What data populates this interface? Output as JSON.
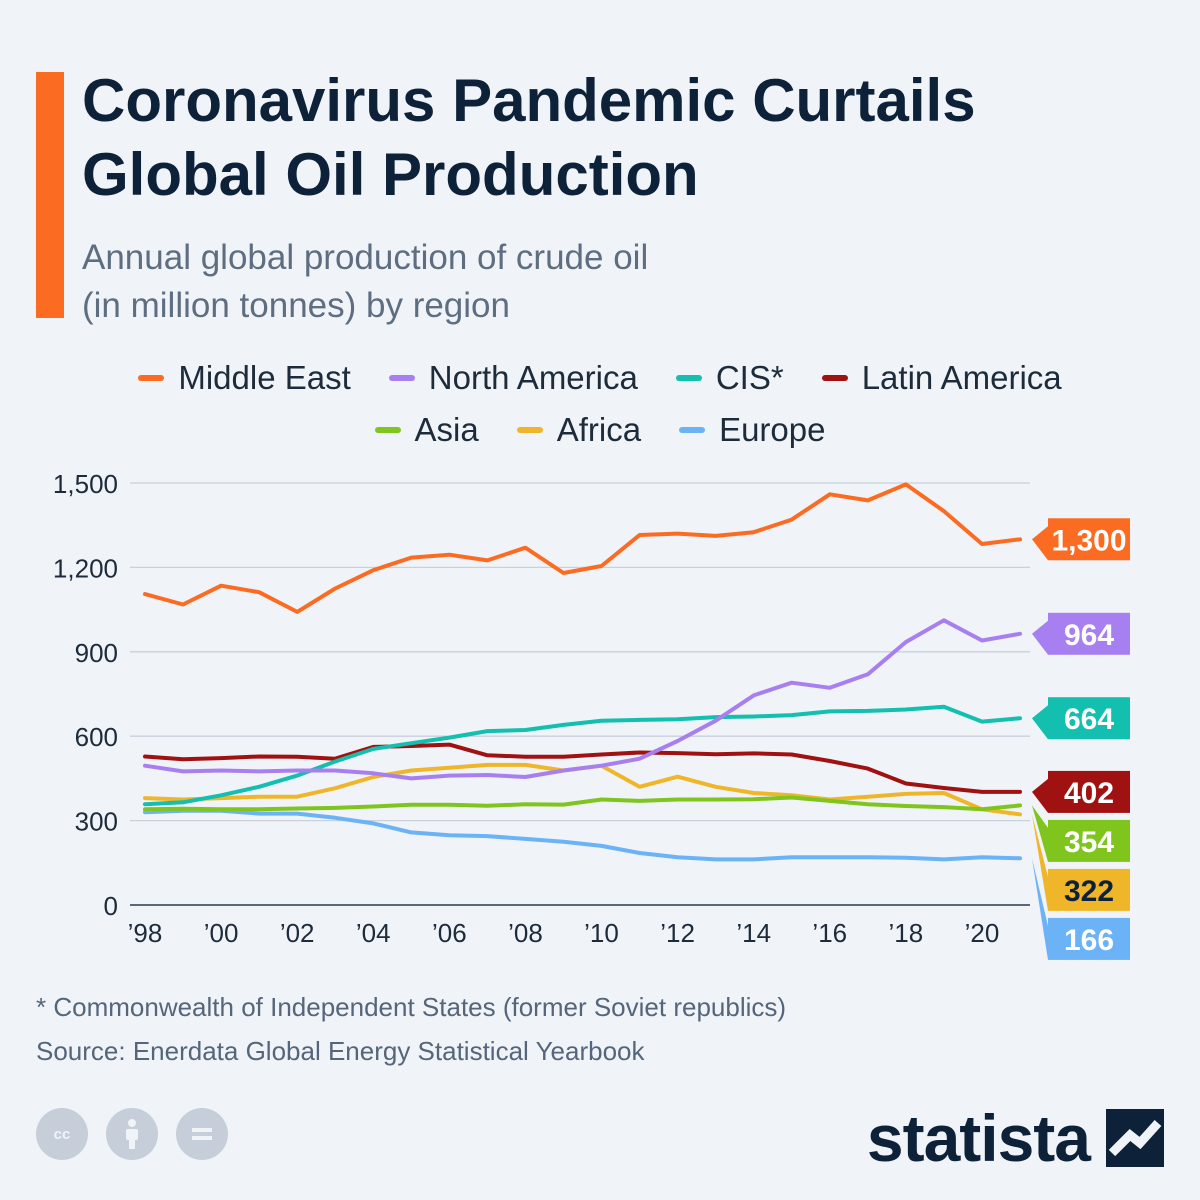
{
  "title": "Coronavirus Pandemic Curtails\nGlobal Oil Production",
  "subtitle": "Annual global production of crude oil\n(in million tonnes) by region",
  "footnote": "* Commonwealth of Independent States (former Soviet republics)",
  "source": "Source: Enerdata Global Energy Statistical Yearbook",
  "brand": "statista",
  "accent_color": "#fb6b22",
  "license_icons": [
    "cc-icon",
    "attribution-icon",
    "no-derivatives-icon"
  ],
  "chart_data": {
    "type": "line",
    "title": "Annual global production of crude oil (in million tonnes) by region",
    "xlabel": "",
    "ylabel": "",
    "x": [
      1998,
      1999,
      2000,
      2001,
      2002,
      2003,
      2004,
      2005,
      2006,
      2007,
      2008,
      2009,
      2010,
      2011,
      2012,
      2013,
      2014,
      2015,
      2016,
      2017,
      2018,
      2019,
      2020,
      2021
    ],
    "xticks": [
      1998,
      2000,
      2002,
      2004,
      2006,
      2008,
      2010,
      2012,
      2014,
      2016,
      2018,
      2020
    ],
    "xtick_labels": [
      "’98",
      "’00",
      "’02",
      "’04",
      "’06",
      "’08",
      "’10",
      "’12",
      "’14",
      "’16",
      "’18",
      "’20"
    ],
    "yticks": [
      0,
      300,
      600,
      900,
      1200,
      1500
    ],
    "ytick_labels": [
      "0",
      "300",
      "600",
      "900",
      "1,200",
      "1,500"
    ],
    "ylim": [
      0,
      1500
    ],
    "grid": true,
    "legend_rows": [
      [
        "Middle East",
        "North America",
        "CIS*",
        "Latin America"
      ],
      [
        "Asia",
        "Africa",
        "Europe"
      ]
    ],
    "series": [
      {
        "name": "Middle East",
        "color": "#fb6b22",
        "end_label": "1,300",
        "label_text_color": "#ffffff",
        "values": [
          1105,
          1068,
          1135,
          1112,
          1042,
          1125,
          1190,
          1235,
          1245,
          1225,
          1270,
          1180,
          1205,
          1315,
          1320,
          1312,
          1325,
          1370,
          1460,
          1438,
          1495,
          1400,
          1283,
          1300
        ]
      },
      {
        "name": "North America",
        "color": "#a87ff0",
        "end_label": "964",
        "label_text_color": "#ffffff",
        "values": [
          495,
          475,
          478,
          475,
          478,
          478,
          468,
          450,
          460,
          462,
          455,
          478,
          495,
          520,
          583,
          655,
          745,
          790,
          772,
          820,
          935,
          1012,
          940,
          964
        ]
      },
      {
        "name": "CIS*",
        "color": "#13bfae",
        "end_label": "664",
        "label_text_color": "#ffffff",
        "values": [
          358,
          365,
          390,
          420,
          460,
          510,
          555,
          575,
          595,
          618,
          622,
          640,
          655,
          658,
          660,
          668,
          670,
          675,
          688,
          690,
          695,
          705,
          652,
          664
        ]
      },
      {
        "name": "Latin America",
        "color": "#a01212",
        "end_label": "402",
        "label_text_color": "#ffffff",
        "values": [
          528,
          518,
          522,
          528,
          527,
          520,
          562,
          565,
          570,
          532,
          527,
          527,
          535,
          542,
          540,
          536,
          539,
          535,
          512,
          485,
          432,
          416,
          402,
          402
        ]
      },
      {
        "name": "Asia",
        "color": "#7fc51e",
        "end_label": "354",
        "label_text_color": "#ffffff",
        "values": [
          340,
          342,
          340,
          340,
          343,
          345,
          350,
          356,
          356,
          353,
          358,
          357,
          375,
          370,
          375,
          375,
          376,
          382,
          370,
          358,
          352,
          348,
          340,
          354
        ]
      },
      {
        "name": "Africa",
        "color": "#f0b62a",
        "end_label": "322",
        "label_text_color": "#0d2239",
        "values": [
          380,
          375,
          380,
          385,
          385,
          415,
          455,
          478,
          488,
          498,
          498,
          478,
          495,
          420,
          456,
          420,
          398,
          390,
          375,
          385,
          395,
          398,
          340,
          322
        ]
      },
      {
        "name": "Europe",
        "color": "#6cb2f7",
        "end_label": "166",
        "label_text_color": "#ffffff",
        "values": [
          330,
          335,
          335,
          325,
          325,
          310,
          290,
          258,
          248,
          245,
          235,
          225,
          210,
          185,
          170,
          162,
          162,
          170,
          170,
          170,
          168,
          162,
          170,
          166
        ]
      }
    ]
  }
}
